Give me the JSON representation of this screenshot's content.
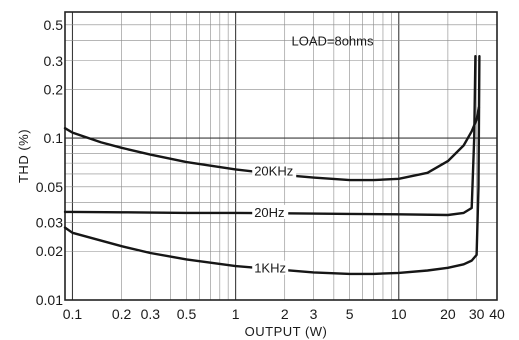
{
  "chart_data": {
    "type": "line",
    "title": "",
    "xlabel": "OUTPUT (W)",
    "ylabel": "THD (%)",
    "xscale": "log",
    "yscale": "log",
    "xlim": [
      0.09,
      40
    ],
    "ylim": [
      0.01,
      0.6
    ],
    "grid": true,
    "x_tick_labels": [
      {
        "value": 0.1,
        "label": "0.1"
      },
      {
        "value": 0.2,
        "label": "0.2"
      },
      {
        "value": 0.3,
        "label": "0.3"
      },
      {
        "value": 0.5,
        "label": "0.5"
      },
      {
        "value": 1,
        "label": "1"
      },
      {
        "value": 2,
        "label": "2"
      },
      {
        "value": 3,
        "label": "3"
      },
      {
        "value": 5,
        "label": "5"
      },
      {
        "value": 10,
        "label": "10"
      },
      {
        "value": 20,
        "label": "20"
      },
      {
        "value": 30,
        "label": "30"
      },
      {
        "value": 40,
        "label": "40"
      }
    ],
    "y_tick_labels": [
      {
        "value": 0.01,
        "label": "0.01"
      },
      {
        "value": 0.02,
        "label": "0.02"
      },
      {
        "value": 0.03,
        "label": "0.03"
      },
      {
        "value": 0.05,
        "label": "0.05"
      },
      {
        "value": 0.1,
        "label": "0.1"
      },
      {
        "value": 0.2,
        "label": "0.2"
      },
      {
        "value": 0.3,
        "label": "0.3"
      },
      {
        "value": 0.5,
        "label": "0.5"
      }
    ],
    "annotations": [
      {
        "text": "LOAD=8ohms"
      }
    ],
    "series": [
      {
        "name": "20KHz",
        "x": [
          0.09,
          0.1,
          0.15,
          0.2,
          0.3,
          0.5,
          1,
          2,
          3,
          5,
          7,
          10,
          15,
          20,
          25,
          28,
          30,
          31
        ],
        "y": [
          0.115,
          0.108,
          0.094,
          0.087,
          0.079,
          0.071,
          0.064,
          0.059,
          0.057,
          0.055,
          0.055,
          0.056,
          0.061,
          0.072,
          0.09,
          0.11,
          0.13,
          0.155
        ]
      },
      {
        "name": "20Hz",
        "x": [
          0.09,
          0.1,
          0.2,
          0.5,
          1,
          2,
          5,
          10,
          20,
          25,
          28,
          29,
          29.5
        ],
        "y": [
          0.035,
          0.035,
          0.0348,
          0.0345,
          0.0345,
          0.0343,
          0.034,
          0.0338,
          0.0335,
          0.0345,
          0.037,
          0.1,
          0.32
        ]
      },
      {
        "name": "1KHz",
        "x": [
          0.09,
          0.1,
          0.2,
          0.3,
          0.5,
          1,
          2,
          3,
          5,
          7,
          10,
          15,
          20,
          25,
          28,
          30,
          30.8,
          31.2
        ],
        "y": [
          0.028,
          0.026,
          0.0215,
          0.0195,
          0.0178,
          0.0162,
          0.0153,
          0.0148,
          0.0145,
          0.0145,
          0.0147,
          0.0152,
          0.0158,
          0.0166,
          0.0175,
          0.019,
          0.05,
          0.32
        ]
      }
    ]
  }
}
